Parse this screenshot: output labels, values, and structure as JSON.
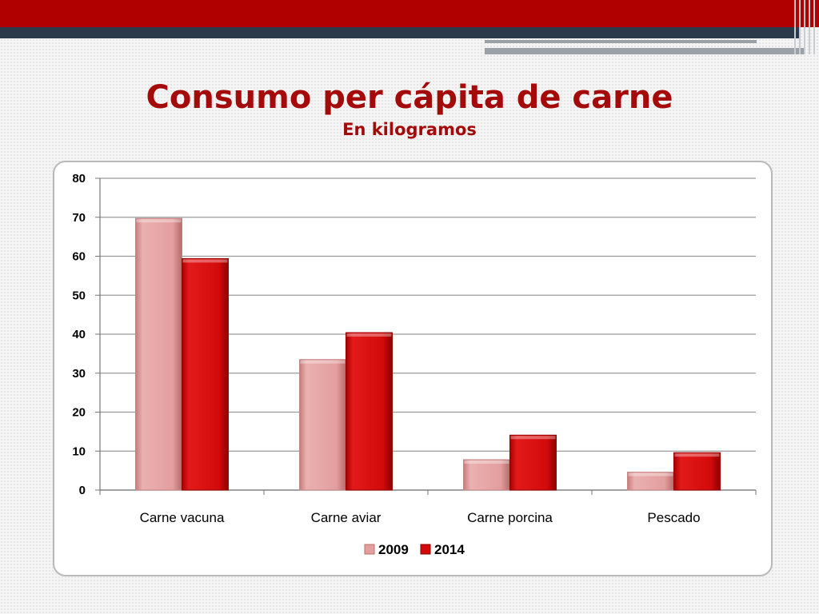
{
  "header": {
    "title": "Consumo per cápita de carne",
    "subtitle": "En kilogramos"
  },
  "colors": {
    "band_red": "#b00000",
    "band_dark": "#2b3a4a",
    "title": "#a50a0a",
    "series_2009": "#e39e9e",
    "series_2014": "#d20a0a",
    "gridline": "#9a9a9a"
  },
  "chart_data": {
    "type": "bar",
    "title": "",
    "xlabel": "",
    "ylabel": "",
    "categories": [
      "Carne vacuna",
      "Carne aviar",
      "Carne porcina",
      "Pescado"
    ],
    "series": [
      {
        "name": "2009",
        "values": [
          69.7,
          33.5,
          7.8,
          4.6
        ]
      },
      {
        "name": "2014",
        "values": [
          59.4,
          40.4,
          14.1,
          9.6
        ]
      }
    ],
    "ylim": [
      0,
      80
    ],
    "yticks": [
      0,
      10,
      20,
      30,
      40,
      50,
      60,
      70,
      80
    ],
    "grid": true,
    "legend": "bottom"
  }
}
